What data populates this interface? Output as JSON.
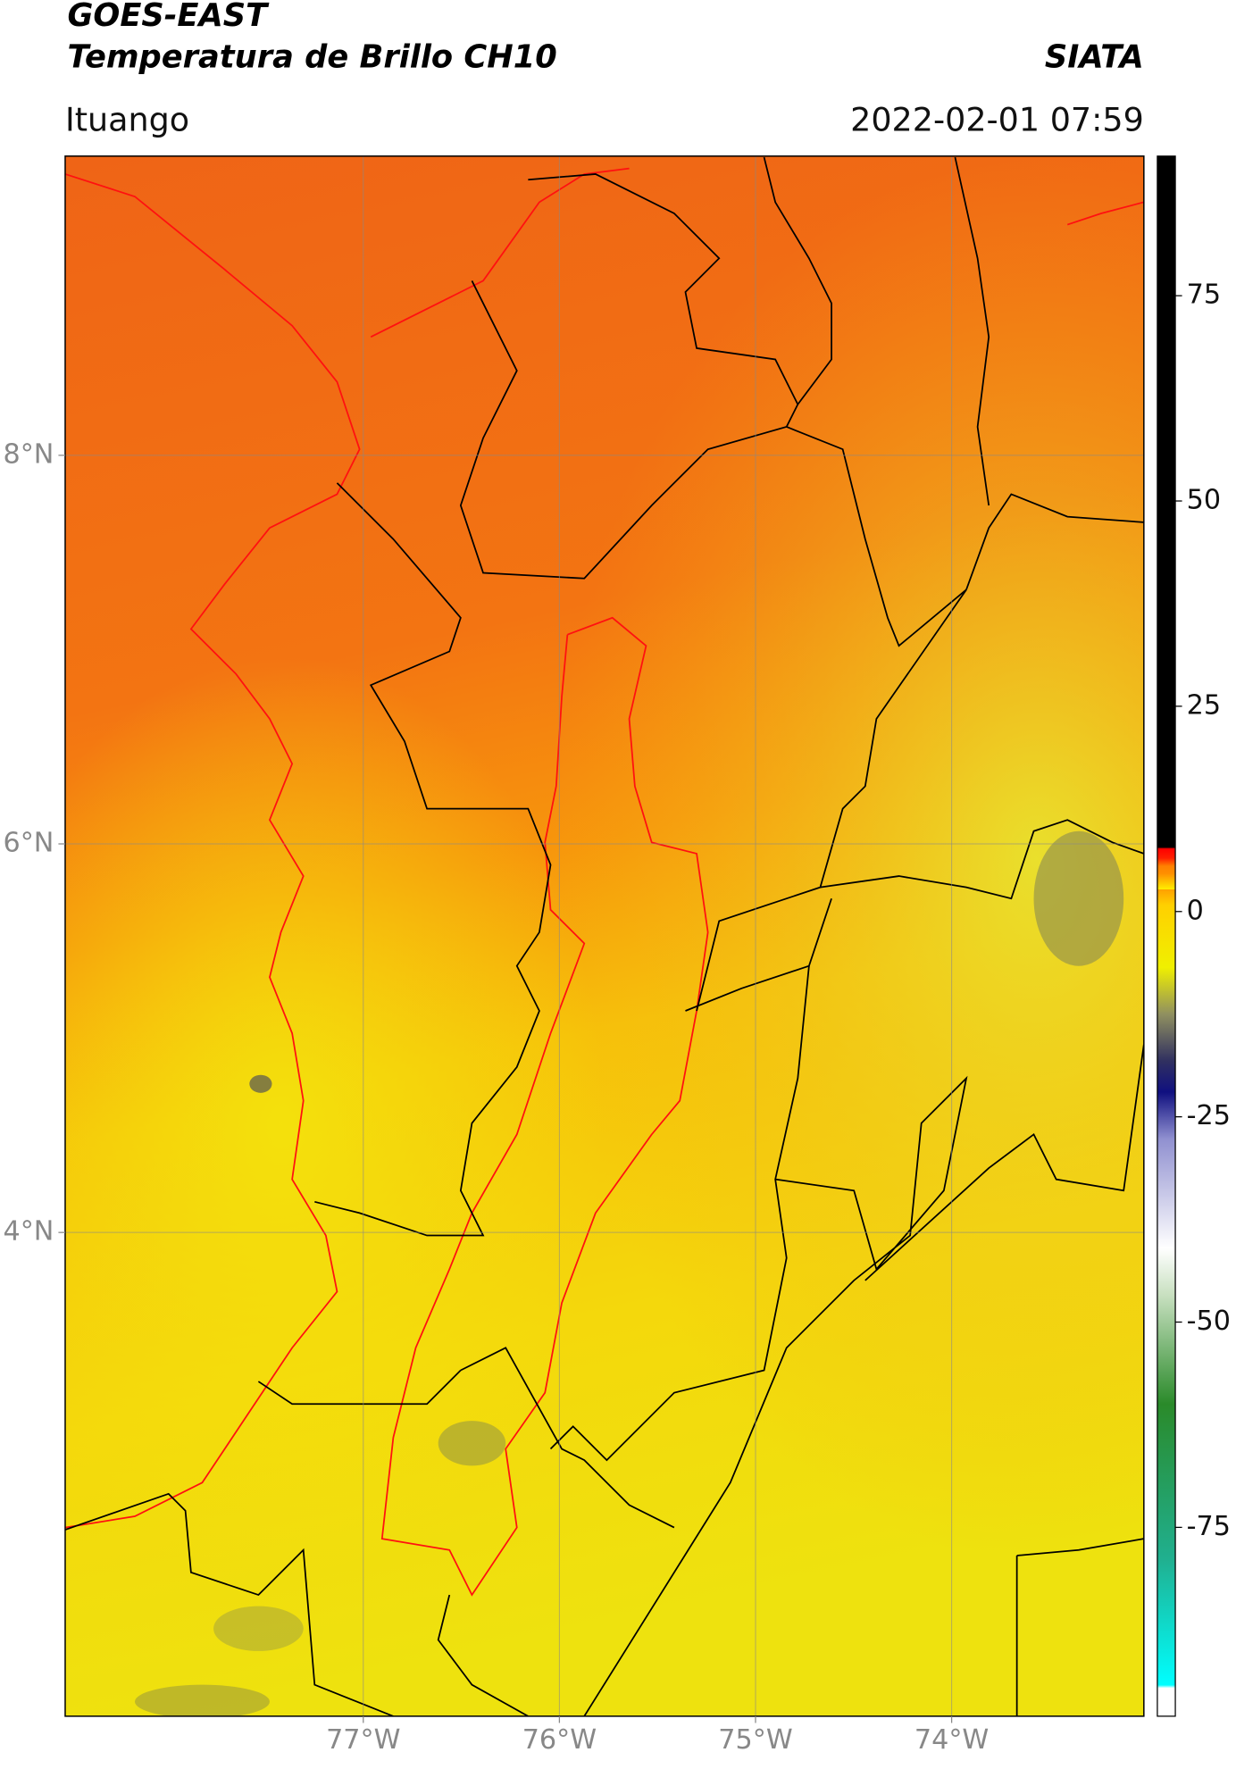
{
  "header": {
    "title": "GOES-EAST",
    "subtitle": "Temperatura de Brillo CH10",
    "source": "SIATA",
    "location": "Ituango",
    "datetime": "2022-02-01 07:59"
  },
  "map": {
    "xlim": [
      -78.52,
      -73.02
    ],
    "ylim": [
      1.51,
      9.54
    ],
    "xticks": [
      {
        "value": -77,
        "label": "77°W"
      },
      {
        "value": -76,
        "label": "76°W"
      },
      {
        "value": -75,
        "label": "75°W"
      },
      {
        "value": -74,
        "label": "74°W"
      }
    ],
    "yticks": [
      {
        "value": 8,
        "label": "8°N"
      },
      {
        "value": 6,
        "label": "6°N"
      },
      {
        "value": 4,
        "label": "4°N"
      }
    ],
    "grid": true
  },
  "colorbar": {
    "clim": [
      -98,
      92
    ],
    "ticks": [
      75,
      50,
      25,
      0,
      -25,
      -50,
      -75
    ]
  }
}
